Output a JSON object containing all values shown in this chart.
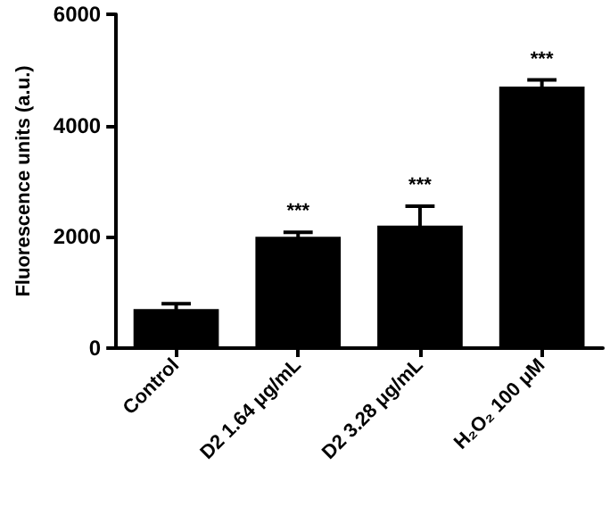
{
  "chart_data": {
    "type": "bar",
    "ylabel": "Fluorescence units (a.u.)",
    "categories": [
      "Control",
      "D2 1.64 μg/mL",
      "D2 3.28 μg/mL",
      "H₂O₂ 100 μM"
    ],
    "values": [
      700,
      2000,
      2200,
      4700
    ],
    "errors": [
      100,
      80,
      350,
      120
    ],
    "color": "#000000",
    "ylim": [
      0,
      6000
    ],
    "yticks": [
      0,
      2000,
      4000,
      6000
    ],
    "annotations": [
      {
        "text": "***",
        "x": "D2 1.64 μg/mL",
        "y": 2080
      },
      {
        "text": "***",
        "x": "D2 3.28 μg/mL",
        "y": 2550
      },
      {
        "text": "***",
        "x": "H₂O₂ 100 μM",
        "y": 4820
      }
    ]
  }
}
